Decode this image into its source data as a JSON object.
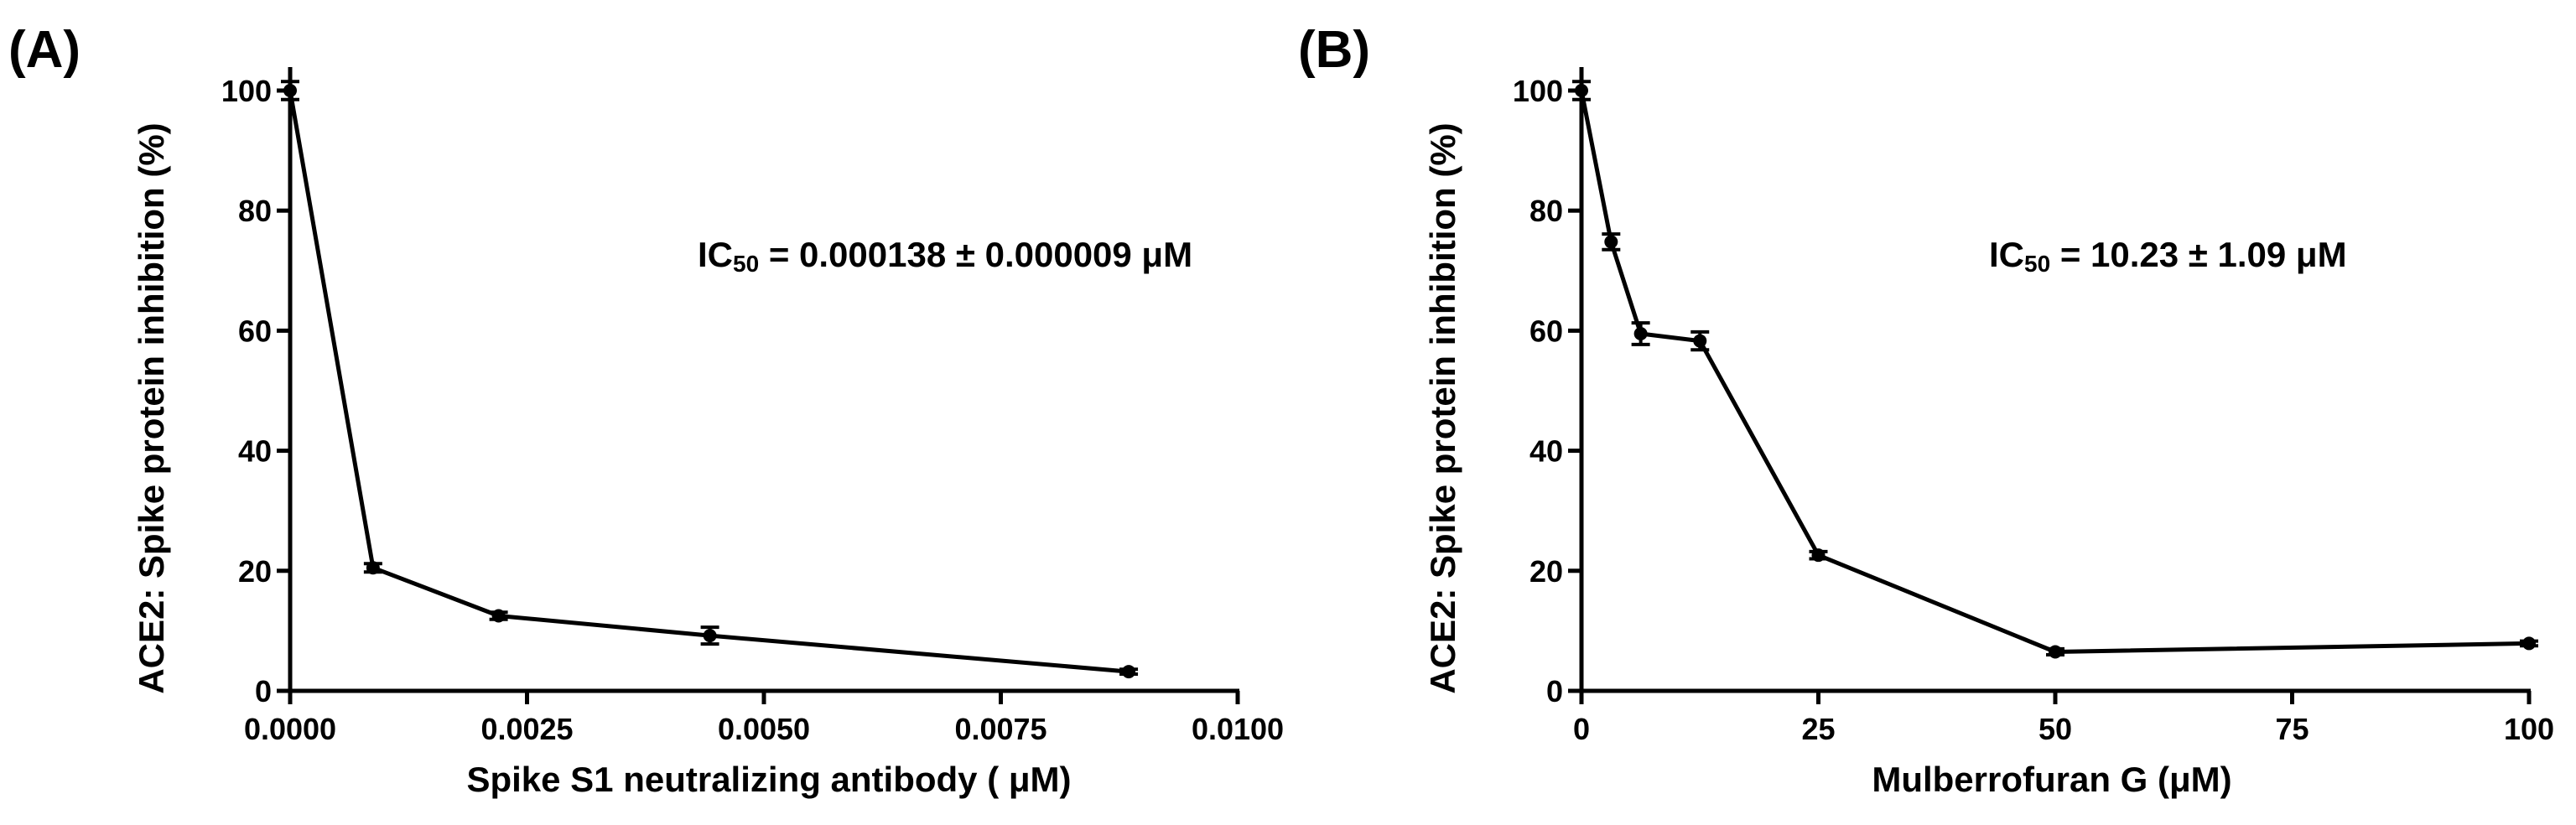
{
  "figure": {
    "panels": [
      "A",
      "B"
    ]
  },
  "chart_data": [
    {
      "type": "line",
      "panel_label": "(A)",
      "title": "",
      "xlabel": "Spike S1 neutralizing antibody ( μM)",
      "ylabel": "ACE2: Spike protein inhibition (%)",
      "xlim": [
        0,
        0.01
      ],
      "ylim": [
        0,
        100
      ],
      "xticks": [
        0,
        0.0025,
        0.005,
        0.0075,
        0.01
      ],
      "xtick_labels": [
        "0.0000",
        "0.0025",
        "0.0050",
        "0.0075",
        "0.0100"
      ],
      "yticks": [
        0,
        20,
        40,
        60,
        80,
        100
      ],
      "ytick_labels": [
        "0",
        "20",
        "40",
        "60",
        "80",
        "100"
      ],
      "series": [
        {
          "name": "Spike S1 neutralizing antibody",
          "x": [
            0,
            0.000875,
            0.0022,
            0.00443,
            0.00885
          ],
          "y": [
            100,
            20.5,
            12.5,
            9.2,
            3.2
          ],
          "err": [
            1.5,
            0.7,
            0.6,
            1.4,
            0.4
          ]
        }
      ],
      "annotation": {
        "prefix": "IC",
        "subscript": "50",
        "value": " = 0.000138 ± 0.000009 μM"
      }
    },
    {
      "type": "line",
      "panel_label": "(B)",
      "title": "",
      "xlabel": "Mulberrofuran G (μM)",
      "ylabel": "ACE2: Spike protein inhibition (%)",
      "xlim": [
        0,
        100
      ],
      "ylim": [
        0,
        100
      ],
      "xticks": [
        0,
        25,
        50,
        75,
        100
      ],
      "xtick_labels": [
        "0",
        "25",
        "50",
        "75",
        "100"
      ],
      "yticks": [
        0,
        20,
        40,
        60,
        80,
        100
      ],
      "ytick_labels": [
        "0",
        "20",
        "40",
        "60",
        "80",
        "100"
      ],
      "series": [
        {
          "name": "Mulberrofuran G",
          "x": [
            0,
            3.125,
            6.25,
            12.5,
            25,
            50,
            100
          ],
          "y": [
            100,
            74.8,
            59.5,
            58.3,
            22.6,
            6.5,
            7.9
          ],
          "err": [
            1.5,
            1.3,
            1.8,
            1.5,
            0.6,
            0.5,
            0.4
          ]
        }
      ],
      "annotation": {
        "prefix": "IC",
        "subscript": "50",
        "value": " = 10.23 ± 1.09 μM"
      }
    }
  ]
}
